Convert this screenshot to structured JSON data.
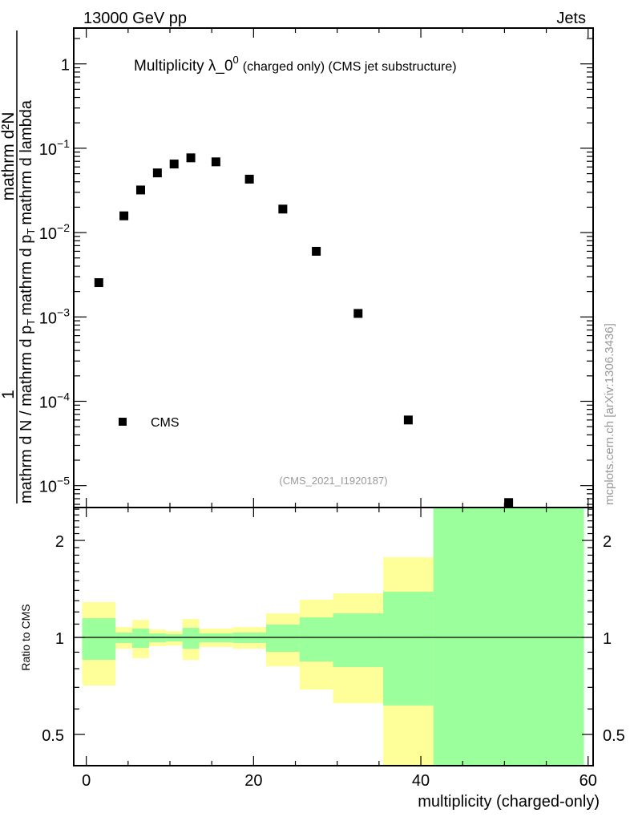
{
  "header": {
    "left": "13000 GeV pp",
    "right": "Jets"
  },
  "watermark": "mcplots.cern.ch [arXiv:1306.3436]",
  "chart_data": [
    {
      "type": "scatter",
      "title_main": "Multiplicity λ_0",
      "title_sup": "0",
      "title_rest": "(charged only) (CMS jet substructure)",
      "analysis_label": "(CMS_2021_I1920187)",
      "ylabel": {
        "prefix_num": "1",
        "num": "mathrm d²N",
        "den_a": "mathrm d N / mathrm d p",
        "den_b": "mathrm d p",
        "den_c": "mathrm d lambda",
        "sub": "T"
      },
      "yscale": "log",
      "ylim": [
        5.5e-06,
        2.66
      ],
      "xlim": [
        -1.5,
        60.6
      ],
      "ytick_labels": [
        {
          "v": 1,
          "base": "1",
          "exp": ""
        },
        {
          "v": 0.1,
          "base": "10",
          "exp": "−1"
        },
        {
          "v": 0.01,
          "base": "10",
          "exp": "−2"
        },
        {
          "v": 0.001,
          "base": "10",
          "exp": "−3"
        },
        {
          "v": 0.0001,
          "base": "10",
          "exp": "−4"
        },
        {
          "v": 1e-05,
          "base": "10",
          "exp": "−5"
        }
      ],
      "legend": {
        "entries": [
          "CMS"
        ],
        "placement": "bottom-left"
      },
      "series": [
        {
          "name": "CMS",
          "x": [
            1.5,
            4.5,
            6.5,
            8.5,
            10.5,
            12.5,
            15.5,
            19.5,
            23.5,
            27.5,
            32.5,
            38.5,
            50.5
          ],
          "y": [
            0.00255,
            0.0158,
            0.032,
            0.051,
            0.065,
            0.077,
            0.069,
            0.043,
            0.019,
            0.006,
            0.0011,
            6e-05,
            6.3e-06
          ]
        }
      ]
    },
    {
      "type": "area",
      "ylabel": "Ratio to CMS",
      "xlabel": "multiplicity (charged-only)",
      "yscale": "log",
      "ylim": [
        0.4,
        2.53
      ],
      "ytick_labels": [
        "2",
        "1",
        "0.5"
      ],
      "ytick_values": [
        2,
        1,
        0.5
      ],
      "xtick_labels": [
        "0",
        "20",
        "40",
        "60"
      ],
      "xtick_values": [
        0,
        20,
        40,
        60
      ],
      "bin_edges": [
        -0.5,
        3.5,
        5.5,
        7.5,
        9.5,
        11.5,
        13.5,
        17.5,
        21.5,
        25.5,
        29.5,
        35.5,
        41.5,
        59.5
      ],
      "band_inner": {
        "color": "#9bff9b",
        "lo": [
          0.852,
          0.961,
          0.928,
          0.966,
          0.972,
          0.923,
          0.966,
          0.961,
          0.902,
          0.842,
          0.809,
          0.615,
          0.2
        ],
        "hi": [
          1.147,
          1.035,
          1.065,
          1.029,
          1.023,
          1.071,
          1.029,
          1.035,
          1.096,
          1.154,
          1.188,
          1.386,
          5.0
        ]
      },
      "band_outer": {
        "color": "#ffff99",
        "lo": [
          0.709,
          0.923,
          0.862,
          0.939,
          0.944,
          0.852,
          0.934,
          0.923,
          0.814,
          0.689,
          0.625,
          0.3,
          0.2
        ],
        "hi": [
          1.287,
          1.077,
          1.134,
          1.059,
          1.047,
          1.141,
          1.065,
          1.077,
          1.188,
          1.309,
          1.37,
          1.773,
          5.0
        ]
      },
      "reference_line": 1
    }
  ]
}
